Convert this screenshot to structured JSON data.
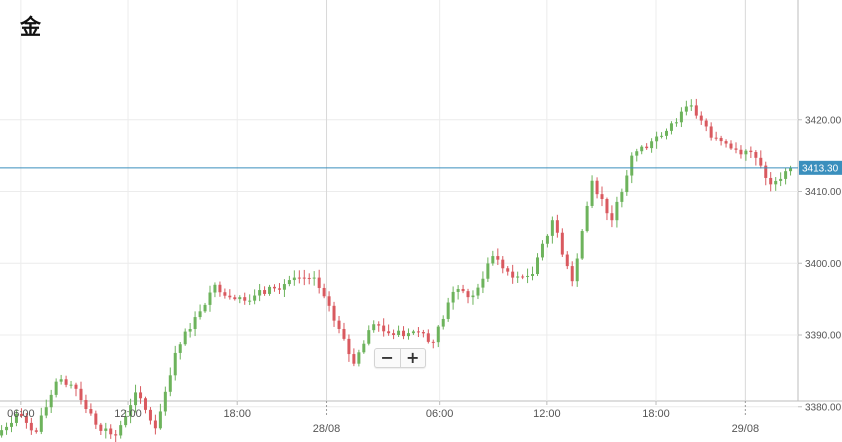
{
  "title": "金",
  "zoom": {
    "out_label": "−",
    "in_label": "+"
  },
  "colors": {
    "up": "#6db35c",
    "down": "#d9595f",
    "price_line": "#3a8fbd",
    "price_tag": "#3a8fbd",
    "grid": "#ececec",
    "axis_text": "#555555"
  },
  "chart_data": {
    "type": "candlestick",
    "title": "金",
    "xlabel": "",
    "ylabel": "",
    "grid": true,
    "last_price": 3413.3,
    "last_price_label": "3413.30",
    "y_ticks": [
      3380,
      3390,
      3400,
      3410,
      3420
    ],
    "y_tick_labels": [
      "3380.00",
      "3390.00",
      "3400.00",
      "3410.00",
      "3420.00"
    ],
    "ylim": [
      3372,
      3425
    ],
    "x_ticks": [
      {
        "t": 0.6,
        "label": "06:00",
        "date": ""
      },
      {
        "t": 6.0,
        "label": "12:00",
        "date": ""
      },
      {
        "t": 11.5,
        "label": "18:00",
        "date": ""
      },
      {
        "t": 16.0,
        "label": "",
        "date": "28/08"
      },
      {
        "t": 21.7,
        "label": "06:00",
        "date": ""
      },
      {
        "t": 27.1,
        "label": "12:00",
        "date": ""
      },
      {
        "t": 32.6,
        "label": "18:00",
        "date": ""
      },
      {
        "t": 37.1,
        "label": "",
        "date": "29/08"
      }
    ],
    "candles_hourly": [
      {
        "t": 0,
        "open": 3376.0,
        "close": 3379.0
      },
      {
        "t": 1,
        "open": 3379.0,
        "close": 3376.5
      },
      {
        "t": 2,
        "open": 3376.5,
        "close": 3383.5
      },
      {
        "t": 3,
        "open": 3383.5,
        "close": 3382.5
      },
      {
        "t": 4,
        "open": 3382.5,
        "close": 3377.5
      },
      {
        "t": 5,
        "open": 3377.5,
        "close": 3376.0
      },
      {
        "t": 6,
        "open": 3376.0,
        "close": 3382.0
      },
      {
        "t": 7,
        "open": 3382.0,
        "close": 3377.0
      },
      {
        "t": 8,
        "open": 3377.0,
        "close": 3387.5
      },
      {
        "t": 9,
        "open": 3387.5,
        "close": 3392.5
      },
      {
        "t": 10,
        "open": 3392.5,
        "close": 3397.0
      },
      {
        "t": 11,
        "open": 3397.0,
        "close": 3395.0
      },
      {
        "t": 12,
        "open": 3395.0,
        "close": 3395.5
      },
      {
        "t": 13,
        "open": 3395.5,
        "close": 3396.5
      },
      {
        "t": 14,
        "open": 3396.5,
        "close": 3398.0
      },
      {
        "t": 15,
        "open": 3398.0,
        "close": 3398.0
      },
      {
        "t": 16,
        "open": 3398.0,
        "close": 3392.0
      },
      {
        "t": 17,
        "open": 3392.0,
        "close": 3386.0
      },
      {
        "t": 18,
        "open": 3386.0,
        "close": 3391.5
      },
      {
        "t": 19,
        "open": 3391.5,
        "close": 3390.0
      },
      {
        "t": 20,
        "open": 3390.0,
        "close": 3390.5
      },
      {
        "t": 21,
        "open": 3390.5,
        "close": 3389.0
      },
      {
        "t": 22,
        "open": 3389.0,
        "close": 3396.0
      },
      {
        "t": 23,
        "open": 3396.0,
        "close": 3395.5
      },
      {
        "t": 24,
        "open": 3395.5,
        "close": 3401.0
      },
      {
        "t": 25,
        "open": 3401.0,
        "close": 3398.0
      },
      {
        "t": 26,
        "open": 3398.0,
        "close": 3398.5
      },
      {
        "t": 27,
        "open": 3398.5,
        "close": 3406.0
      },
      {
        "t": 28,
        "open": 3406.0,
        "close": 3397.5
      },
      {
        "t": 29,
        "open": 3397.5,
        "close": 3411.5
      },
      {
        "t": 30,
        "open": 3411.5,
        "close": 3406.0
      },
      {
        "t": 31,
        "open": 3406.0,
        "close": 3415.0
      },
      {
        "t": 32,
        "open": 3415.0,
        "close": 3417.0
      },
      {
        "t": 33,
        "open": 3417.0,
        "close": 3419.5
      },
      {
        "t": 34,
        "open": 3419.5,
        "close": 3422.0
      },
      {
        "t": 35,
        "open": 3422.0,
        "close": 3417.5
      },
      {
        "t": 36,
        "open": 3417.5,
        "close": 3416.0
      },
      {
        "t": 37,
        "open": 3416.0,
        "close": 3415.5
      },
      {
        "t": 38,
        "open": 3415.5,
        "close": 3411.0
      },
      {
        "t": 39,
        "open": 3411.0,
        "close": 3413.3
      }
    ]
  }
}
